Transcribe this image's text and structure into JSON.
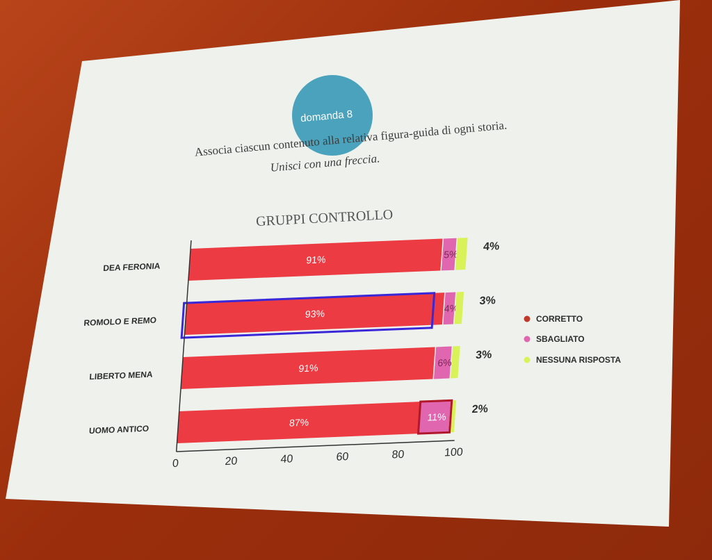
{
  "slide": {
    "badge": "domanda 8",
    "instruction": "Associa ciascun contenuto alla relativa figura-guida di ogni storia.",
    "subinstruction": "Unisci con una freccia."
  },
  "colors": {
    "corretto": "#ec3b43",
    "sbagliato": "#e066b0",
    "nessuna": "#d9f25a",
    "badge": "#4aa2bd",
    "highlight_blue": "#3a28d8",
    "highlight_red": "#b2182b"
  },
  "chart_data": {
    "type": "bar",
    "orientation": "horizontal",
    "stacked": true,
    "title": "GRUPPI CONTROLLO",
    "categories": [
      "DEA FERONIA",
      "ROMOLO E REMO",
      "LIBERTO MENA",
      "UOMO ANTICO"
    ],
    "series": [
      {
        "name": "CORRETTO",
        "values": [
          91,
          93,
          91,
          87
        ],
        "labels": [
          "91%",
          "93%",
          "91%",
          "87%"
        ]
      },
      {
        "name": "SBAGLIATO",
        "values": [
          5,
          4,
          6,
          11
        ],
        "labels": [
          "5%",
          "4%",
          "6%",
          "11%"
        ]
      },
      {
        "name": "NESSUNA RISPOSTA",
        "values": [
          4,
          3,
          3,
          2
        ],
        "labels": [
          "4%",
          "3%",
          "3%",
          "2%"
        ]
      }
    ],
    "xlim": [
      0,
      100
    ],
    "xticks": [
      "0",
      "20",
      "40",
      "60",
      "80",
      "100"
    ],
    "legend": "right",
    "highlighted": [
      "ROMOLO E REMO: CORRETTO",
      "UOMO ANTICO: SBAGLIATO"
    ]
  }
}
